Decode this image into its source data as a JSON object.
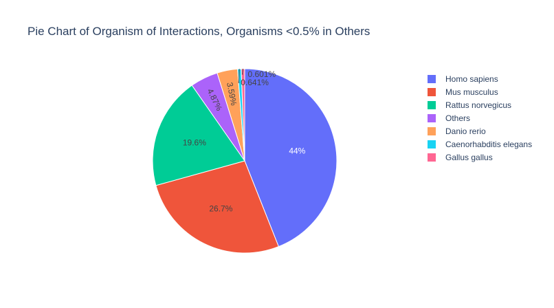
{
  "chart_data": {
    "type": "pie",
    "title": "Pie Chart of Organism of Interactions, Organisms <0.5% in Others",
    "legend_position": "right",
    "slices": [
      {
        "name": "Homo sapiens",
        "value": 44.0,
        "label": "44%",
        "color": "#636efa",
        "label_color": "#ffffff"
      },
      {
        "name": "Mus musculus",
        "value": 26.7,
        "label": "26.7%",
        "color": "#EF553B",
        "label_color": "#444444"
      },
      {
        "name": "Rattus norvegicus",
        "value": 19.6,
        "label": "19.6%",
        "color": "#00cc96",
        "label_color": "#444444"
      },
      {
        "name": "Others",
        "value": 4.87,
        "label": "4.87%",
        "color": "#ab63fa",
        "label_color": "#444444"
      },
      {
        "name": "Danio rerio",
        "value": 3.59,
        "label": "3.59%",
        "color": "#FFA15A",
        "label_color": "#444444"
      },
      {
        "name": "Caenorhabditis elegans",
        "value": 0.641,
        "label": "0.641%",
        "color": "#19d3f3",
        "label_color": "#444444"
      },
      {
        "name": "Gallus gallus",
        "value": 0.601,
        "label": "0.601%",
        "color": "#FF6692",
        "label_color": "#444444"
      }
    ]
  }
}
